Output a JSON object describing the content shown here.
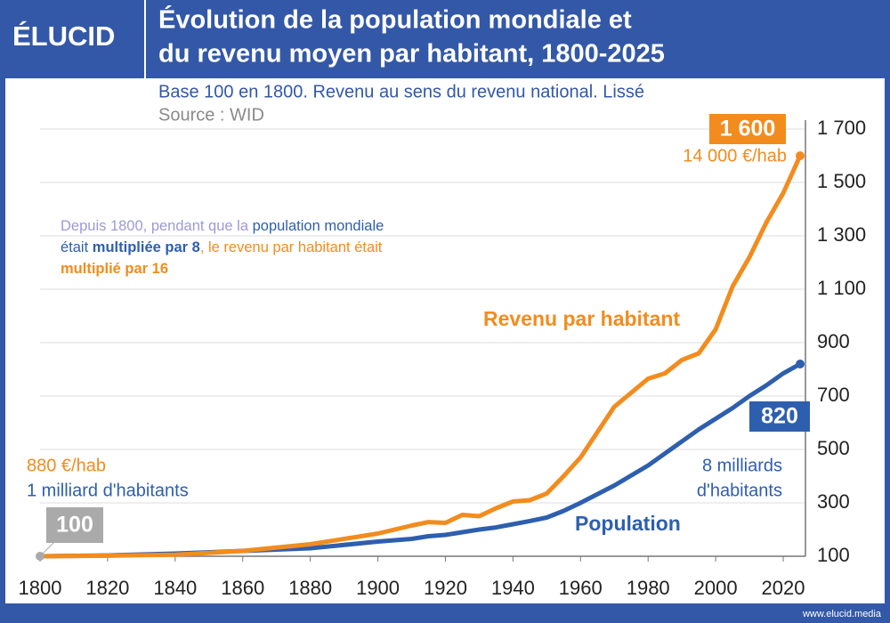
{
  "header": {
    "logo": "ÉLUCID",
    "title": [
      "Évolution de la population mondiale et",
      "du revenu moyen par habitant, 1800-2025"
    ]
  },
  "footer": "www.elucid.media",
  "chart_data": {
    "type": "line",
    "subtitle": "Base 100 en 1800. Revenu au sens du revenu national. Lissé",
    "source": "Source : WID",
    "note": [
      {
        "text": "Depuis 1800, pendant que la ",
        "color": "#9c9ad8",
        "bold": false
      },
      {
        "text": "population mondiale était ",
        "color": "#2e5fae",
        "bold": false
      },
      {
        "text": "multipliée par 8",
        "color": "#2e5fae",
        "bold": true
      },
      {
        "text": ", le revenu par habitant était ",
        "color": "#f28c1e",
        "bold": false
      },
      {
        "text": "multiplié par 16",
        "color": "#f28c1e",
        "bold": true
      }
    ],
    "x": [
      1800,
      1820,
      1840,
      1860,
      1880,
      1900,
      1910,
      1915,
      1920,
      1925,
      1930,
      1935,
      1940,
      1945,
      1950,
      1955,
      1960,
      1970,
      1980,
      1985,
      1990,
      1995,
      2000,
      2005,
      2010,
      2015,
      2020,
      2025
    ],
    "series": [
      {
        "name": "Revenu par habitant",
        "color": "#f28c1e",
        "values": [
          100,
          102,
          106,
          120,
          145,
          185,
          215,
          228,
          225,
          255,
          250,
          280,
          305,
          310,
          335,
          400,
          470,
          660,
          765,
          785,
          835,
          860,
          950,
          1110,
          1220,
          1350,
          1460,
          1600
        ],
        "value_labels": [
          null,
          null,
          null,
          null,
          null,
          null,
          null,
          null,
          null,
          null,
          null,
          null,
          null,
          null,
          null,
          null,
          null,
          null,
          null,
          null,
          null,
          null,
          null,
          null,
          null,
          null,
          null,
          "1 600"
        ],
        "start_note": "880 €/hab",
        "end_note": "14 000 €/hab"
      },
      {
        "name": "Population",
        "color": "#2e5fae",
        "values": [
          100,
          103,
          110,
          120,
          130,
          155,
          165,
          175,
          180,
          190,
          200,
          208,
          220,
          232,
          245,
          270,
          300,
          365,
          440,
          485,
          530,
          575,
          615,
          655,
          700,
          740,
          785,
          820
        ],
        "start_note": "1 milliard d'habitants",
        "end_note": [
          "8 milliards",
          "d'habitants"
        ]
      }
    ],
    "xlim": [
      1800,
      2025
    ],
    "xticks": [
      1800,
      1820,
      1840,
      1860,
      1880,
      1900,
      1920,
      1940,
      1960,
      1980,
      2000,
      2020
    ],
    "ylim": [
      100,
      1700
    ],
    "yticks": [
      100,
      300,
      500,
      700,
      900,
      {
        "value": 1100,
        "label": "1 100"
      },
      {
        "value": 1300,
        "label": "1 300"
      },
      {
        "value": 1500,
        "label": "1 500"
      },
      {
        "value": 1700,
        "label": "1 700"
      }
    ],
    "grid": true
  }
}
